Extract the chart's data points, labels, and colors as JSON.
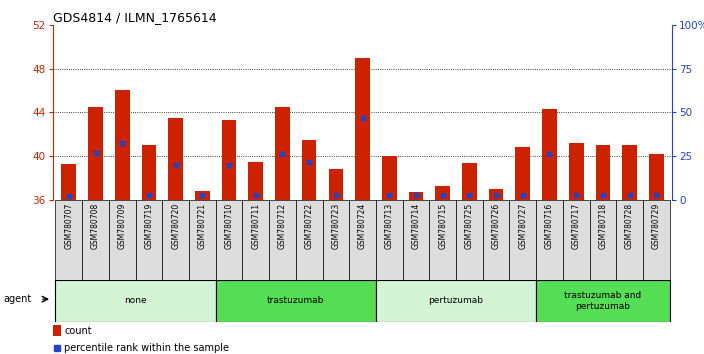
{
  "title": "GDS4814 / ILMN_1765614",
  "samples": [
    "GSM780707",
    "GSM780708",
    "GSM780709",
    "GSM780719",
    "GSM780720",
    "GSM780721",
    "GSM780710",
    "GSM780711",
    "GSM780712",
    "GSM780722",
    "GSM780723",
    "GSM780724",
    "GSM780713",
    "GSM780714",
    "GSM780715",
    "GSM780725",
    "GSM780726",
    "GSM780727",
    "GSM780716",
    "GSM780717",
    "GSM780718",
    "GSM780728",
    "GSM780729"
  ],
  "count_values": [
    39.3,
    44.5,
    46.0,
    41.0,
    43.5,
    36.8,
    43.3,
    39.5,
    44.5,
    41.5,
    38.8,
    49.0,
    40.0,
    36.7,
    37.3,
    39.4,
    37.0,
    40.8,
    44.3,
    41.2,
    41.0,
    41.0,
    40.2
  ],
  "percentile_values": [
    36.4,
    40.3,
    41.2,
    36.5,
    39.2,
    36.5,
    39.2,
    36.5,
    40.2,
    39.5,
    36.5,
    43.5,
    36.5,
    36.5,
    36.5,
    36.5,
    36.5,
    36.5,
    40.2,
    36.5,
    36.5,
    36.5,
    36.5
  ],
  "groups": [
    {
      "label": "none",
      "start": 0,
      "end": 6,
      "color": "#d4f5d4"
    },
    {
      "label": "trastuzumab",
      "start": 6,
      "end": 12,
      "color": "#55dd55"
    },
    {
      "label": "pertuzumab",
      "start": 12,
      "end": 18,
      "color": "#d4f5d4"
    },
    {
      "label": "trastuzumab and\npertuzumab",
      "start": 18,
      "end": 23,
      "color": "#55dd55"
    }
  ],
  "ylim_left": [
    36,
    52
  ],
  "yticks_left": [
    36,
    40,
    44,
    48,
    52
  ],
  "ylim_right": [
    0,
    100
  ],
  "yticks_right": [
    0,
    25,
    50,
    75,
    100
  ],
  "bar_color": "#cc2200",
  "dot_color": "#2244cc",
  "grid_lines": [
    40,
    44,
    48
  ],
  "agent_label": "agent"
}
